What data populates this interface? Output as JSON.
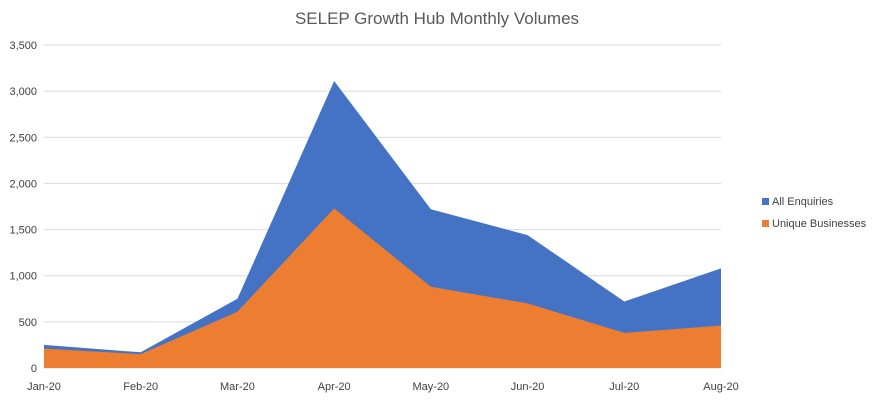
{
  "chart_data": {
    "type": "area",
    "title": "SELEP Growth Hub Monthly Volumes",
    "xlabel": "",
    "ylabel": "",
    "categories": [
      "Jan-20",
      "Feb-20",
      "Mar-20",
      "Apr-20",
      "May-20",
      "Jun-20",
      "Jul-20",
      "Aug-20"
    ],
    "ylim": [
      0,
      3500
    ],
    "yticks": [
      "0",
      "500",
      "1,000",
      "1,500",
      "2,000",
      "2,500",
      "3,000",
      "3,500"
    ],
    "grid": true,
    "legend_position": "right",
    "series": [
      {
        "name": "All Enquiries",
        "color": "#4472c4",
        "values": [
          250,
          170,
          750,
          3110,
          1720,
          1440,
          720,
          1080
        ]
      },
      {
        "name": "Unique Businesses",
        "color": "#ed7d31",
        "values": [
          210,
          150,
          610,
          1730,
          880,
          700,
          380,
          460
        ]
      }
    ]
  }
}
